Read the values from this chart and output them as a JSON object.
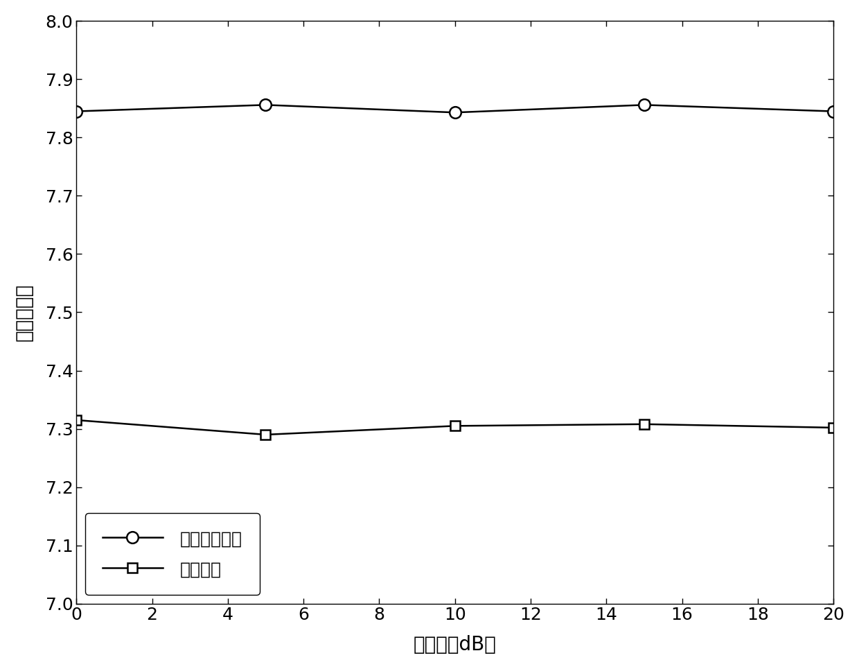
{
  "x": [
    0,
    5,
    10,
    15,
    20
  ],
  "y_circle": [
    7.845,
    7.856,
    7.843,
    7.856,
    7.845
  ],
  "y_square": [
    7.315,
    7.29,
    7.305,
    7.308,
    7.302
  ],
  "xlabel": "信噪比（dB）",
  "ylabel": "跟均方误差",
  "legend_circle": "差分相关方法",
  "legend_square": "改进方法",
  "xlim": [
    0,
    20
  ],
  "ylim": [
    7.0,
    8.0
  ],
  "xticks": [
    0,
    2,
    4,
    6,
    8,
    10,
    12,
    14,
    16,
    18,
    20
  ],
  "yticks": [
    7.0,
    7.1,
    7.2,
    7.3,
    7.4,
    7.5,
    7.6,
    7.7,
    7.8,
    7.9,
    8.0
  ],
  "line_color": "#000000",
  "background_color": "#ffffff",
  "font_size_label": 20,
  "font_size_tick": 18,
  "font_size_legend": 18
}
